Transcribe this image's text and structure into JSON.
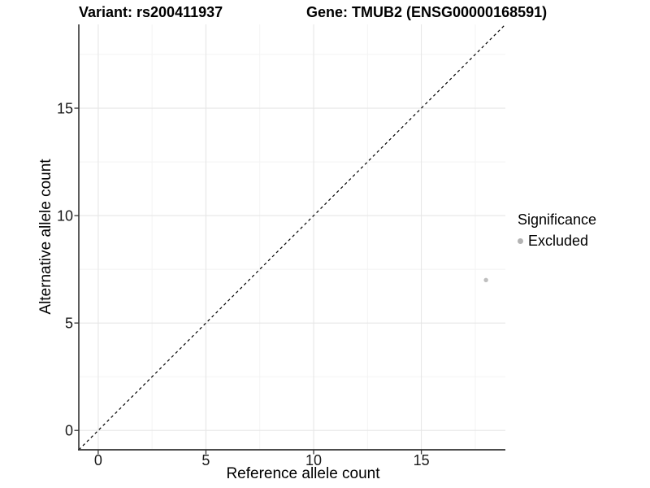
{
  "titles": {
    "variant": "Variant: rs200411937",
    "gene": "Gene: TMUB2 (ENSG00000168591)"
  },
  "colors": {
    "grid_major": "#e6e6e6",
    "grid_minor": "#f2f2f2",
    "axis_line": "#333333",
    "tick_text": "#1a1a1a",
    "point": "#bfbfbf",
    "legend_key": "#b3b3b3",
    "identity_line": "#000000"
  },
  "chart_data": {
    "type": "scatter",
    "title_left": "Variant: rs200411937",
    "title_right": "Gene: TMUB2 (ENSG00000168591)",
    "xlabel": "Reference allele count",
    "ylabel": "Alternative allele count",
    "xlim": [
      -0.9,
      18.9
    ],
    "ylim": [
      -0.9,
      18.9
    ],
    "x_major_ticks": [
      0,
      5,
      10,
      15
    ],
    "y_major_ticks": [
      0,
      5,
      10,
      15
    ],
    "x_minor_ticks": [
      2.5,
      7.5,
      12.5,
      17.5
    ],
    "y_minor_ticks": [
      2.5,
      7.5,
      12.5,
      17.5
    ],
    "grid": true,
    "points": [
      {
        "x": 18,
        "y": 7,
        "series": "Excluded"
      }
    ],
    "series": [
      {
        "name": "Excluded",
        "color": "#bfbfbf"
      }
    ],
    "identity_line": {
      "slope": 1,
      "intercept": 0,
      "style": "dashed"
    },
    "legend": {
      "title": "Significance",
      "position": "right",
      "items": [
        "Excluded"
      ]
    }
  }
}
